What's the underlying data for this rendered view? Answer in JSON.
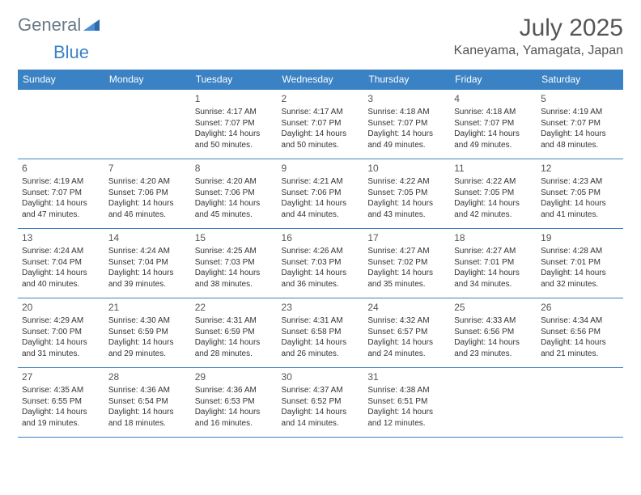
{
  "logo": {
    "text_a": "General",
    "text_b": "Blue"
  },
  "title": "July 2025",
  "location": "Kaneyama, Yamagata, Japan",
  "colors": {
    "header_bg": "#3b82c4",
    "header_text": "#ffffff",
    "border": "#3b82c4",
    "body_text": "#333333",
    "title_text": "#555555",
    "logo_gray": "#6b7a87",
    "logo_blue": "#3b82c4"
  },
  "day_headers": [
    "Sunday",
    "Monday",
    "Tuesday",
    "Wednesday",
    "Thursday",
    "Friday",
    "Saturday"
  ],
  "weeks": [
    [
      null,
      null,
      {
        "n": "1",
        "sr": "Sunrise: 4:17 AM",
        "ss": "Sunset: 7:07 PM",
        "dl1": "Daylight: 14 hours",
        "dl2": "and 50 minutes."
      },
      {
        "n": "2",
        "sr": "Sunrise: 4:17 AM",
        "ss": "Sunset: 7:07 PM",
        "dl1": "Daylight: 14 hours",
        "dl2": "and 50 minutes."
      },
      {
        "n": "3",
        "sr": "Sunrise: 4:18 AM",
        "ss": "Sunset: 7:07 PM",
        "dl1": "Daylight: 14 hours",
        "dl2": "and 49 minutes."
      },
      {
        "n": "4",
        "sr": "Sunrise: 4:18 AM",
        "ss": "Sunset: 7:07 PM",
        "dl1": "Daylight: 14 hours",
        "dl2": "and 49 minutes."
      },
      {
        "n": "5",
        "sr": "Sunrise: 4:19 AM",
        "ss": "Sunset: 7:07 PM",
        "dl1": "Daylight: 14 hours",
        "dl2": "and 48 minutes."
      }
    ],
    [
      {
        "n": "6",
        "sr": "Sunrise: 4:19 AM",
        "ss": "Sunset: 7:07 PM",
        "dl1": "Daylight: 14 hours",
        "dl2": "and 47 minutes."
      },
      {
        "n": "7",
        "sr": "Sunrise: 4:20 AM",
        "ss": "Sunset: 7:06 PM",
        "dl1": "Daylight: 14 hours",
        "dl2": "and 46 minutes."
      },
      {
        "n": "8",
        "sr": "Sunrise: 4:20 AM",
        "ss": "Sunset: 7:06 PM",
        "dl1": "Daylight: 14 hours",
        "dl2": "and 45 minutes."
      },
      {
        "n": "9",
        "sr": "Sunrise: 4:21 AM",
        "ss": "Sunset: 7:06 PM",
        "dl1": "Daylight: 14 hours",
        "dl2": "and 44 minutes."
      },
      {
        "n": "10",
        "sr": "Sunrise: 4:22 AM",
        "ss": "Sunset: 7:05 PM",
        "dl1": "Daylight: 14 hours",
        "dl2": "and 43 minutes."
      },
      {
        "n": "11",
        "sr": "Sunrise: 4:22 AM",
        "ss": "Sunset: 7:05 PM",
        "dl1": "Daylight: 14 hours",
        "dl2": "and 42 minutes."
      },
      {
        "n": "12",
        "sr": "Sunrise: 4:23 AM",
        "ss": "Sunset: 7:05 PM",
        "dl1": "Daylight: 14 hours",
        "dl2": "and 41 minutes."
      }
    ],
    [
      {
        "n": "13",
        "sr": "Sunrise: 4:24 AM",
        "ss": "Sunset: 7:04 PM",
        "dl1": "Daylight: 14 hours",
        "dl2": "and 40 minutes."
      },
      {
        "n": "14",
        "sr": "Sunrise: 4:24 AM",
        "ss": "Sunset: 7:04 PM",
        "dl1": "Daylight: 14 hours",
        "dl2": "and 39 minutes."
      },
      {
        "n": "15",
        "sr": "Sunrise: 4:25 AM",
        "ss": "Sunset: 7:03 PM",
        "dl1": "Daylight: 14 hours",
        "dl2": "and 38 minutes."
      },
      {
        "n": "16",
        "sr": "Sunrise: 4:26 AM",
        "ss": "Sunset: 7:03 PM",
        "dl1": "Daylight: 14 hours",
        "dl2": "and 36 minutes."
      },
      {
        "n": "17",
        "sr": "Sunrise: 4:27 AM",
        "ss": "Sunset: 7:02 PM",
        "dl1": "Daylight: 14 hours",
        "dl2": "and 35 minutes."
      },
      {
        "n": "18",
        "sr": "Sunrise: 4:27 AM",
        "ss": "Sunset: 7:01 PM",
        "dl1": "Daylight: 14 hours",
        "dl2": "and 34 minutes."
      },
      {
        "n": "19",
        "sr": "Sunrise: 4:28 AM",
        "ss": "Sunset: 7:01 PM",
        "dl1": "Daylight: 14 hours",
        "dl2": "and 32 minutes."
      }
    ],
    [
      {
        "n": "20",
        "sr": "Sunrise: 4:29 AM",
        "ss": "Sunset: 7:00 PM",
        "dl1": "Daylight: 14 hours",
        "dl2": "and 31 minutes."
      },
      {
        "n": "21",
        "sr": "Sunrise: 4:30 AM",
        "ss": "Sunset: 6:59 PM",
        "dl1": "Daylight: 14 hours",
        "dl2": "and 29 minutes."
      },
      {
        "n": "22",
        "sr": "Sunrise: 4:31 AM",
        "ss": "Sunset: 6:59 PM",
        "dl1": "Daylight: 14 hours",
        "dl2": "and 28 minutes."
      },
      {
        "n": "23",
        "sr": "Sunrise: 4:31 AM",
        "ss": "Sunset: 6:58 PM",
        "dl1": "Daylight: 14 hours",
        "dl2": "and 26 minutes."
      },
      {
        "n": "24",
        "sr": "Sunrise: 4:32 AM",
        "ss": "Sunset: 6:57 PM",
        "dl1": "Daylight: 14 hours",
        "dl2": "and 24 minutes."
      },
      {
        "n": "25",
        "sr": "Sunrise: 4:33 AM",
        "ss": "Sunset: 6:56 PM",
        "dl1": "Daylight: 14 hours",
        "dl2": "and 23 minutes."
      },
      {
        "n": "26",
        "sr": "Sunrise: 4:34 AM",
        "ss": "Sunset: 6:56 PM",
        "dl1": "Daylight: 14 hours",
        "dl2": "and 21 minutes."
      }
    ],
    [
      {
        "n": "27",
        "sr": "Sunrise: 4:35 AM",
        "ss": "Sunset: 6:55 PM",
        "dl1": "Daylight: 14 hours",
        "dl2": "and 19 minutes."
      },
      {
        "n": "28",
        "sr": "Sunrise: 4:36 AM",
        "ss": "Sunset: 6:54 PM",
        "dl1": "Daylight: 14 hours",
        "dl2": "and 18 minutes."
      },
      {
        "n": "29",
        "sr": "Sunrise: 4:36 AM",
        "ss": "Sunset: 6:53 PM",
        "dl1": "Daylight: 14 hours",
        "dl2": "and 16 minutes."
      },
      {
        "n": "30",
        "sr": "Sunrise: 4:37 AM",
        "ss": "Sunset: 6:52 PM",
        "dl1": "Daylight: 14 hours",
        "dl2": "and 14 minutes."
      },
      {
        "n": "31",
        "sr": "Sunrise: 4:38 AM",
        "ss": "Sunset: 6:51 PM",
        "dl1": "Daylight: 14 hours",
        "dl2": "and 12 minutes."
      },
      null,
      null
    ]
  ]
}
